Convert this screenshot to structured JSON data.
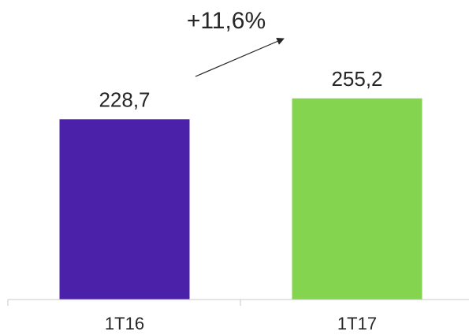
{
  "chart_data": {
    "type": "bar",
    "categories": [
      "1T16",
      "1T17"
    ],
    "values": [
      228.7,
      255.2
    ],
    "data_labels": [
      "228,7",
      "255,2"
    ],
    "colors": [
      "#4b21a9",
      "#85d44f"
    ],
    "annotation": {
      "text": "+11,6%",
      "kind": "growth-arrow"
    },
    "grid": false,
    "legend": "none",
    "ylim": [
      0,
      300
    ]
  }
}
